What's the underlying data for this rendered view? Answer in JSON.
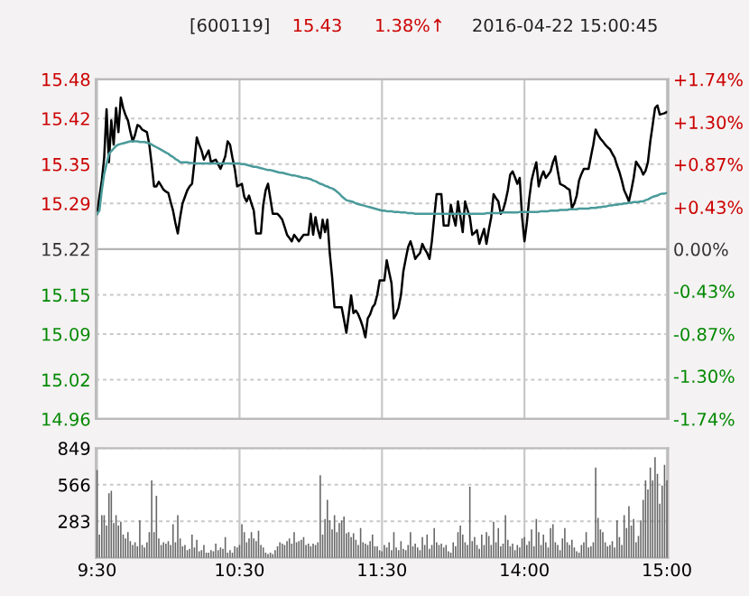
{
  "chart_data": [
    {
      "type": "line",
      "title": "[600119]",
      "annotations": [
        "15.43",
        "1.38%↑",
        "2016-04-22 15:00:45"
      ],
      "categories": [
        null,
        null,
        null,
        null,
        null,
        null,
        null,
        null,
        null,
        null,
        null,
        null,
        null,
        null,
        null,
        null,
        null,
        null,
        null,
        null,
        null,
        null,
        null,
        null,
        null,
        null,
        null,
        null,
        null,
        null,
        null,
        null,
        null,
        null,
        null,
        null,
        null,
        null,
        null,
        null,
        null,
        null,
        null,
        null,
        null,
        null,
        null,
        null,
        null,
        null,
        null,
        null,
        null,
        null,
        null,
        null,
        null,
        null,
        null,
        null,
        null,
        null,
        null,
        null,
        null,
        null,
        null,
        null,
        null,
        null,
        null,
        null,
        null,
        null,
        null,
        null,
        null,
        null,
        null,
        null,
        null,
        null,
        null,
        null,
        null,
        null,
        null,
        null,
        null,
        null,
        null,
        null,
        null,
        null,
        null,
        null,
        null,
        null,
        null,
        null,
        null,
        null,
        null,
        null,
        null,
        null,
        null,
        null,
        null,
        null,
        null,
        null,
        null,
        null,
        null,
        null,
        null,
        null,
        null,
        null,
        null,
        null,
        null,
        null,
        null,
        null,
        null,
        null,
        null,
        null,
        null,
        null,
        null,
        null,
        null,
        null,
        null,
        null,
        null,
        null,
        null,
        null,
        null,
        null,
        null,
        null,
        null,
        null,
        null,
        null,
        null,
        null,
        null,
        null,
        null,
        null,
        null,
        null,
        null,
        null,
        null,
        null,
        null,
        null,
        null,
        null,
        null,
        null,
        null,
        null,
        null,
        null,
        null,
        null,
        null,
        null,
        null,
        null,
        null,
        null,
        null,
        null,
        null,
        null,
        null,
        null,
        null,
        null,
        null,
        null,
        null,
        null,
        null,
        null,
        null,
        null,
        null,
        null,
        null,
        null,
        null,
        null,
        null,
        null,
        null,
        null,
        null,
        null,
        null,
        null,
        null,
        null,
        null,
        null,
        null,
        null,
        null,
        null,
        null,
        null,
        null,
        null,
        null,
        null,
        null,
        null,
        null,
        null,
        null,
        null,
        null,
        null,
        null,
        null,
        null,
        null,
        null,
        null,
        null,
        null,
        null
      ],
      "ylim": [
        14.96,
        15.48
      ],
      "yticks": [
        14.96,
        15.02,
        15.09,
        15.15,
        15.22,
        15.29,
        15.35,
        15.42,
        15.48
      ],
      "y2lim": [
        -1.74,
        1.74
      ],
      "y2ticks": [
        {
          "value": -1.74,
          "label": "-1.74%"
        },
        {
          "value": -1.3,
          "label": "-1.30%"
        },
        {
          "value": -0.87,
          "label": "-0.87%"
        },
        {
          "value": -0.43,
          "label": "-0.43%"
        },
        {
          "value": 0,
          "label": "0.00%"
        },
        {
          "value": 0.43,
          "label": "+0.43%"
        },
        {
          "value": 0.87,
          "label": "+0.87%"
        },
        {
          "value": 1.3,
          "label": "+1.30%"
        },
        {
          "value": 1.74,
          "label": "+1.74%"
        }
      ],
      "tick_labels": "y",
      "grid": true,
      "ref_lines": [
        {
          "axis": "y",
          "value": 15.22,
          "color": "#b4b4b4",
          "line_style": "solid"
        }
      ],
      "series": [
        {
          "color": "#000000",
          "values": [
            15.274,
            15.3,
            15.325,
            15.36,
            15.434,
            15.353,
            15.417,
            15.38,
            15.436,
            15.399,
            15.452,
            15.436,
            15.425,
            15.417,
            15.4,
            15.385,
            15.395,
            15.41,
            15.408,
            15.403,
            15.401,
            15.399,
            15.38,
            15.35,
            15.316,
            15.316,
            15.323,
            15.317,
            15.311,
            15.308,
            15.306,
            15.292,
            15.279,
            15.26,
            15.244,
            15.269,
            15.29,
            15.3,
            15.31,
            15.316,
            15.32,
            15.353,
            15.391,
            15.38,
            15.371,
            15.357,
            15.364,
            15.371,
            15.353,
            15.355,
            15.357,
            15.35,
            15.343,
            15.352,
            15.362,
            15.385,
            15.38,
            15.36,
            15.343,
            15.316,
            15.318,
            15.32,
            15.3,
            15.293,
            15.302,
            15.29,
            15.279,
            15.244,
            15.244,
            15.244,
            15.288,
            15.31,
            15.32,
            15.297,
            15.274,
            15.274,
            15.274,
            15.27,
            15.265,
            15.254,
            15.242,
            15.237,
            15.232,
            15.242,
            15.237,
            15.232,
            15.237,
            15.242,
            15.242,
            15.242,
            15.274,
            15.242,
            15.269,
            15.25,
            15.237,
            15.265,
            15.246,
            15.265,
            15.214,
            15.177,
            15.131,
            15.131,
            15.131,
            15.131,
            15.112,
            15.092,
            15.12,
            15.149,
            15.122,
            15.126,
            15.12,
            15.111,
            15.1,
            15.085,
            15.114,
            15.12,
            15.131,
            15.136,
            15.15,
            15.172,
            15.172,
            15.172,
            15.203,
            15.185,
            15.168,
            15.114,
            15.12,
            15.131,
            15.15,
            15.186,
            15.205,
            15.223,
            15.232,
            15.22,
            15.205,
            15.21,
            15.214,
            15.228,
            15.22,
            15.214,
            15.205,
            15.232,
            15.269,
            15.304,
            15.304,
            15.304,
            15.256,
            15.256,
            15.256,
            15.288,
            15.27,
            15.256,
            15.293,
            15.27,
            15.246,
            15.293,
            15.28,
            15.269,
            15.242,
            15.245,
            15.249,
            15.228,
            15.24,
            15.251,
            15.228,
            15.25,
            15.269,
            15.304,
            15.298,
            15.293,
            15.274,
            15.28,
            15.293,
            15.31,
            15.334,
            15.339,
            15.33,
            15.32,
            15.329,
            15.269,
            15.232,
            15.26,
            15.297,
            15.325,
            15.34,
            15.353,
            15.316,
            15.33,
            15.339,
            15.329,
            15.334,
            15.339,
            15.353,
            15.362,
            15.34,
            15.32,
            15.318,
            15.316,
            15.313,
            15.311,
            15.283,
            15.29,
            15.302,
            15.325,
            15.335,
            15.343,
            15.343,
            15.343,
            15.362,
            15.38,
            15.403,
            15.395,
            15.389,
            15.385,
            15.38,
            15.376,
            15.373,
            15.366,
            15.36,
            15.348,
            15.338,
            15.325,
            15.31,
            15.302,
            15.293,
            15.31,
            15.329,
            15.354,
            15.348,
            15.343,
            15.334,
            15.34,
            15.353,
            15.385,
            15.41,
            15.436,
            15.44,
            15.426,
            15.427,
            15.428,
            15.43
          ]
        },
        {
          "color": "#4a9a9a",
          "values": [
            15.274,
            15.279,
            15.31,
            15.335,
            15.35,
            15.366,
            15.37,
            15.374,
            15.378,
            15.38,
            15.381,
            15.382,
            15.383,
            15.384,
            15.385,
            15.385,
            15.385,
            15.385,
            15.384,
            15.384,
            15.384,
            15.383,
            15.382,
            15.38,
            15.378,
            15.376,
            15.374,
            15.372,
            15.37,
            15.368,
            15.366,
            15.363,
            15.361,
            15.358,
            15.356,
            15.353,
            15.353,
            15.353,
            15.353,
            15.352,
            15.352,
            15.351,
            15.351,
            15.351,
            15.351,
            15.351,
            15.351,
            15.351,
            15.351,
            15.351,
            15.351,
            15.351,
            15.351,
            15.351,
            15.351,
            15.351,
            15.351,
            15.351,
            15.351,
            15.351,
            15.351,
            15.35,
            15.35,
            15.349,
            15.348,
            15.347,
            15.346,
            15.346,
            15.345,
            15.344,
            15.343,
            15.342,
            15.341,
            15.341,
            15.34,
            15.339,
            15.338,
            15.337,
            15.337,
            15.336,
            15.335,
            15.334,
            15.333,
            15.333,
            15.332,
            15.331,
            15.33,
            15.329,
            15.329,
            15.328,
            15.327,
            15.325,
            15.324,
            15.322,
            15.32,
            15.319,
            15.317,
            15.316,
            15.314,
            15.313,
            15.311,
            15.308,
            15.305,
            15.301,
            15.298,
            15.295,
            15.294,
            15.293,
            15.292,
            15.29,
            15.289,
            15.288,
            15.287,
            15.286,
            15.285,
            15.284,
            15.283,
            15.282,
            15.281,
            15.28,
            15.279,
            15.279,
            15.278,
            15.278,
            15.278,
            15.277,
            15.277,
            15.277,
            15.276,
            15.276,
            15.276,
            15.275,
            15.275,
            15.275,
            15.274,
            15.274,
            15.274,
            15.274,
            15.274,
            15.274,
            15.274,
            15.274,
            15.274,
            15.274,
            15.274,
            15.274,
            15.274,
            15.274,
            15.274,
            15.274,
            15.274,
            15.274,
            15.274,
            15.274,
            15.274,
            15.274,
            15.274,
            15.274,
            15.274,
            15.274,
            15.274,
            15.274,
            15.274,
            15.274,
            15.275,
            15.275,
            15.275,
            15.275,
            15.275,
            15.275,
            15.276,
            15.276,
            15.276,
            15.276,
            15.276,
            15.276,
            15.276,
            15.276,
            15.277,
            15.277,
            15.277,
            15.277,
            15.277,
            15.277,
            15.277,
            15.277,
            15.277,
            15.278,
            15.278,
            15.278,
            15.278,
            15.279,
            15.279,
            15.279,
            15.279,
            15.28,
            15.28,
            15.28,
            15.28,
            15.281,
            15.281,
            15.281,
            15.281,
            15.282,
            15.282,
            15.282,
            15.282,
            15.282,
            15.283,
            15.283,
            15.283,
            15.284,
            15.284,
            15.285,
            15.285,
            15.286,
            15.287,
            15.287,
            15.288,
            15.288,
            15.289,
            15.289,
            15.29,
            15.29,
            15.291,
            15.291,
            15.292,
            15.292,
            15.292,
            15.293,
            15.293,
            15.295,
            15.296,
            15.298,
            15.3,
            15.301,
            15.302,
            15.304,
            15.305,
            15.305,
            15.306
          ]
        }
      ]
    },
    {
      "type": "bar",
      "categories": [
        "9:30",
        null,
        null,
        null,
        null,
        null,
        null,
        null,
        null,
        null,
        null,
        null,
        null,
        null,
        null,
        null,
        null,
        null,
        null,
        null,
        null,
        null,
        null,
        null,
        null,
        null,
        null,
        null,
        null,
        null,
        null,
        null,
        null,
        null,
        null,
        null,
        null,
        null,
        null,
        null,
        null,
        null,
        null,
        null,
        null,
        null,
        null,
        null,
        null,
        null,
        null,
        null,
        null,
        null,
        null,
        null,
        null,
        null,
        null,
        null,
        "10:30",
        null,
        null,
        null,
        null,
        null,
        null,
        null,
        null,
        null,
        null,
        null,
        null,
        null,
        null,
        null,
        null,
        null,
        null,
        null,
        null,
        null,
        null,
        null,
        null,
        null,
        null,
        null,
        null,
        null,
        null,
        null,
        null,
        null,
        null,
        null,
        null,
        null,
        null,
        null,
        null,
        null,
        null,
        null,
        null,
        null,
        null,
        null,
        null,
        null,
        null,
        null,
        null,
        null,
        null,
        null,
        null,
        null,
        null,
        null,
        "11:30",
        null,
        null,
        null,
        null,
        null,
        null,
        null,
        null,
        null,
        null,
        null,
        null,
        null,
        null,
        null,
        null,
        null,
        null,
        null,
        null,
        null,
        null,
        null,
        null,
        null,
        null,
        null,
        null,
        null,
        null,
        null,
        null,
        null,
        null,
        null,
        null,
        null,
        null,
        null,
        null,
        null,
        null,
        null,
        null,
        null,
        null,
        null,
        null,
        null,
        null,
        null,
        null,
        null,
        null,
        null,
        null,
        null,
        null,
        null,
        "14:00",
        null,
        null,
        null,
        null,
        null,
        null,
        null,
        null,
        null,
        null,
        null,
        null,
        null,
        null,
        null,
        null,
        null,
        null,
        null,
        null,
        null,
        null,
        null,
        null,
        null,
        null,
        null,
        null,
        null,
        null,
        null,
        null,
        null,
        null,
        null,
        null,
        null,
        null,
        null,
        null,
        null,
        null,
        null,
        null,
        null,
        null,
        null,
        null,
        null,
        null,
        null,
        null,
        null,
        null,
        null,
        null,
        null,
        null,
        null,
        "15:00"
      ],
      "ylim": [
        0,
        849
      ],
      "yticks": [
        283,
        566,
        849
      ],
      "grid": true,
      "color": "#666666",
      "values": [
        680,
        180,
        330,
        330,
        250,
        500,
        520,
        270,
        330,
        250,
        280,
        180,
        150,
        200,
        130,
        100,
        120,
        90,
        290,
        100,
        80,
        120,
        200,
        600,
        200,
        480,
        150,
        100,
        120,
        110,
        130,
        100,
        260,
        120,
        330,
        150,
        90,
        100,
        60,
        70,
        180,
        80,
        140,
        50,
        60,
        100,
        40,
        40,
        60,
        50,
        110,
        60,
        80,
        70,
        160,
        40,
        60,
        40,
        90,
        80,
        100,
        260,
        200,
        120,
        150,
        200,
        150,
        130,
        210,
        100,
        80,
        40,
        30,
        40,
        30,
        60,
        90,
        120,
        110,
        100,
        130,
        150,
        110,
        200,
        120,
        130,
        140,
        160,
        100,
        110,
        90,
        110,
        100,
        120,
        640,
        180,
        300,
        450,
        290,
        220,
        330,
        200,
        270,
        290,
        320,
        190,
        200,
        160,
        190,
        140,
        100,
        230,
        120,
        110,
        100,
        130,
        180,
        90,
        90,
        60,
        50,
        100,
        80,
        120,
        60,
        200,
        80,
        60,
        130,
        70,
        60,
        100,
        200,
        90,
        110,
        80,
        60,
        160,
        100,
        180,
        70,
        100,
        230,
        120,
        100,
        110,
        80,
        100,
        50,
        40,
        120,
        90,
        200,
        250,
        180,
        120,
        100,
        550,
        130,
        160,
        100,
        70,
        180,
        100,
        200,
        170,
        100,
        280,
        120,
        230,
        90,
        110,
        330,
        140,
        90,
        110,
        60,
        100,
        80,
        150,
        160,
        100,
        130,
        220,
        90,
        300,
        200,
        100,
        180,
        120,
        80,
        230,
        260,
        120,
        100,
        60,
        150,
        230,
        120,
        100,
        140,
        80,
        50,
        40,
        100,
        120,
        200,
        80,
        90,
        120,
        700,
        310,
        220,
        200,
        120,
        90,
        100,
        130,
        80,
        290,
        160,
        100,
        330,
        230,
        400,
        250,
        300,
        120,
        170,
        290,
        450,
        600,
        530,
        700,
        600,
        780,
        650,
        420,
        560,
        720,
        600
      ]
    }
  ]
}
